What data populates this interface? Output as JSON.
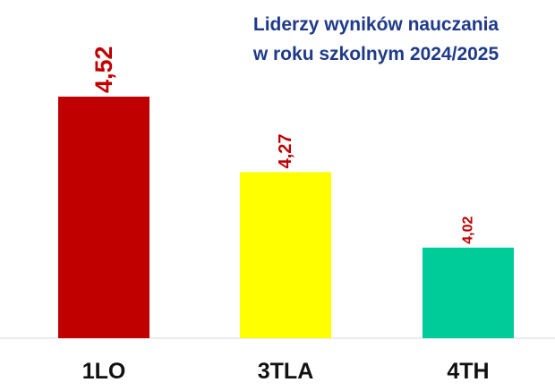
{
  "chart_data": {
    "type": "bar",
    "title_lines": [
      "Liderzy wyników nauczania",
      "w roku szkolnym 2024/2025"
    ],
    "categories": [
      "1LO",
      "3TLA",
      "4TH"
    ],
    "values": [
      4.52,
      4.27,
      4.02
    ],
    "value_labels": [
      "4,52",
      "4,27",
      "4,02"
    ],
    "bar_colors": [
      "#c00000",
      "#ffff00",
      "#00cc99"
    ],
    "value_label_color": "#c00000",
    "title_color": "#1f3a8a",
    "ylim": [
      3.72,
      4.52
    ],
    "grid": false,
    "legend": "none"
  }
}
